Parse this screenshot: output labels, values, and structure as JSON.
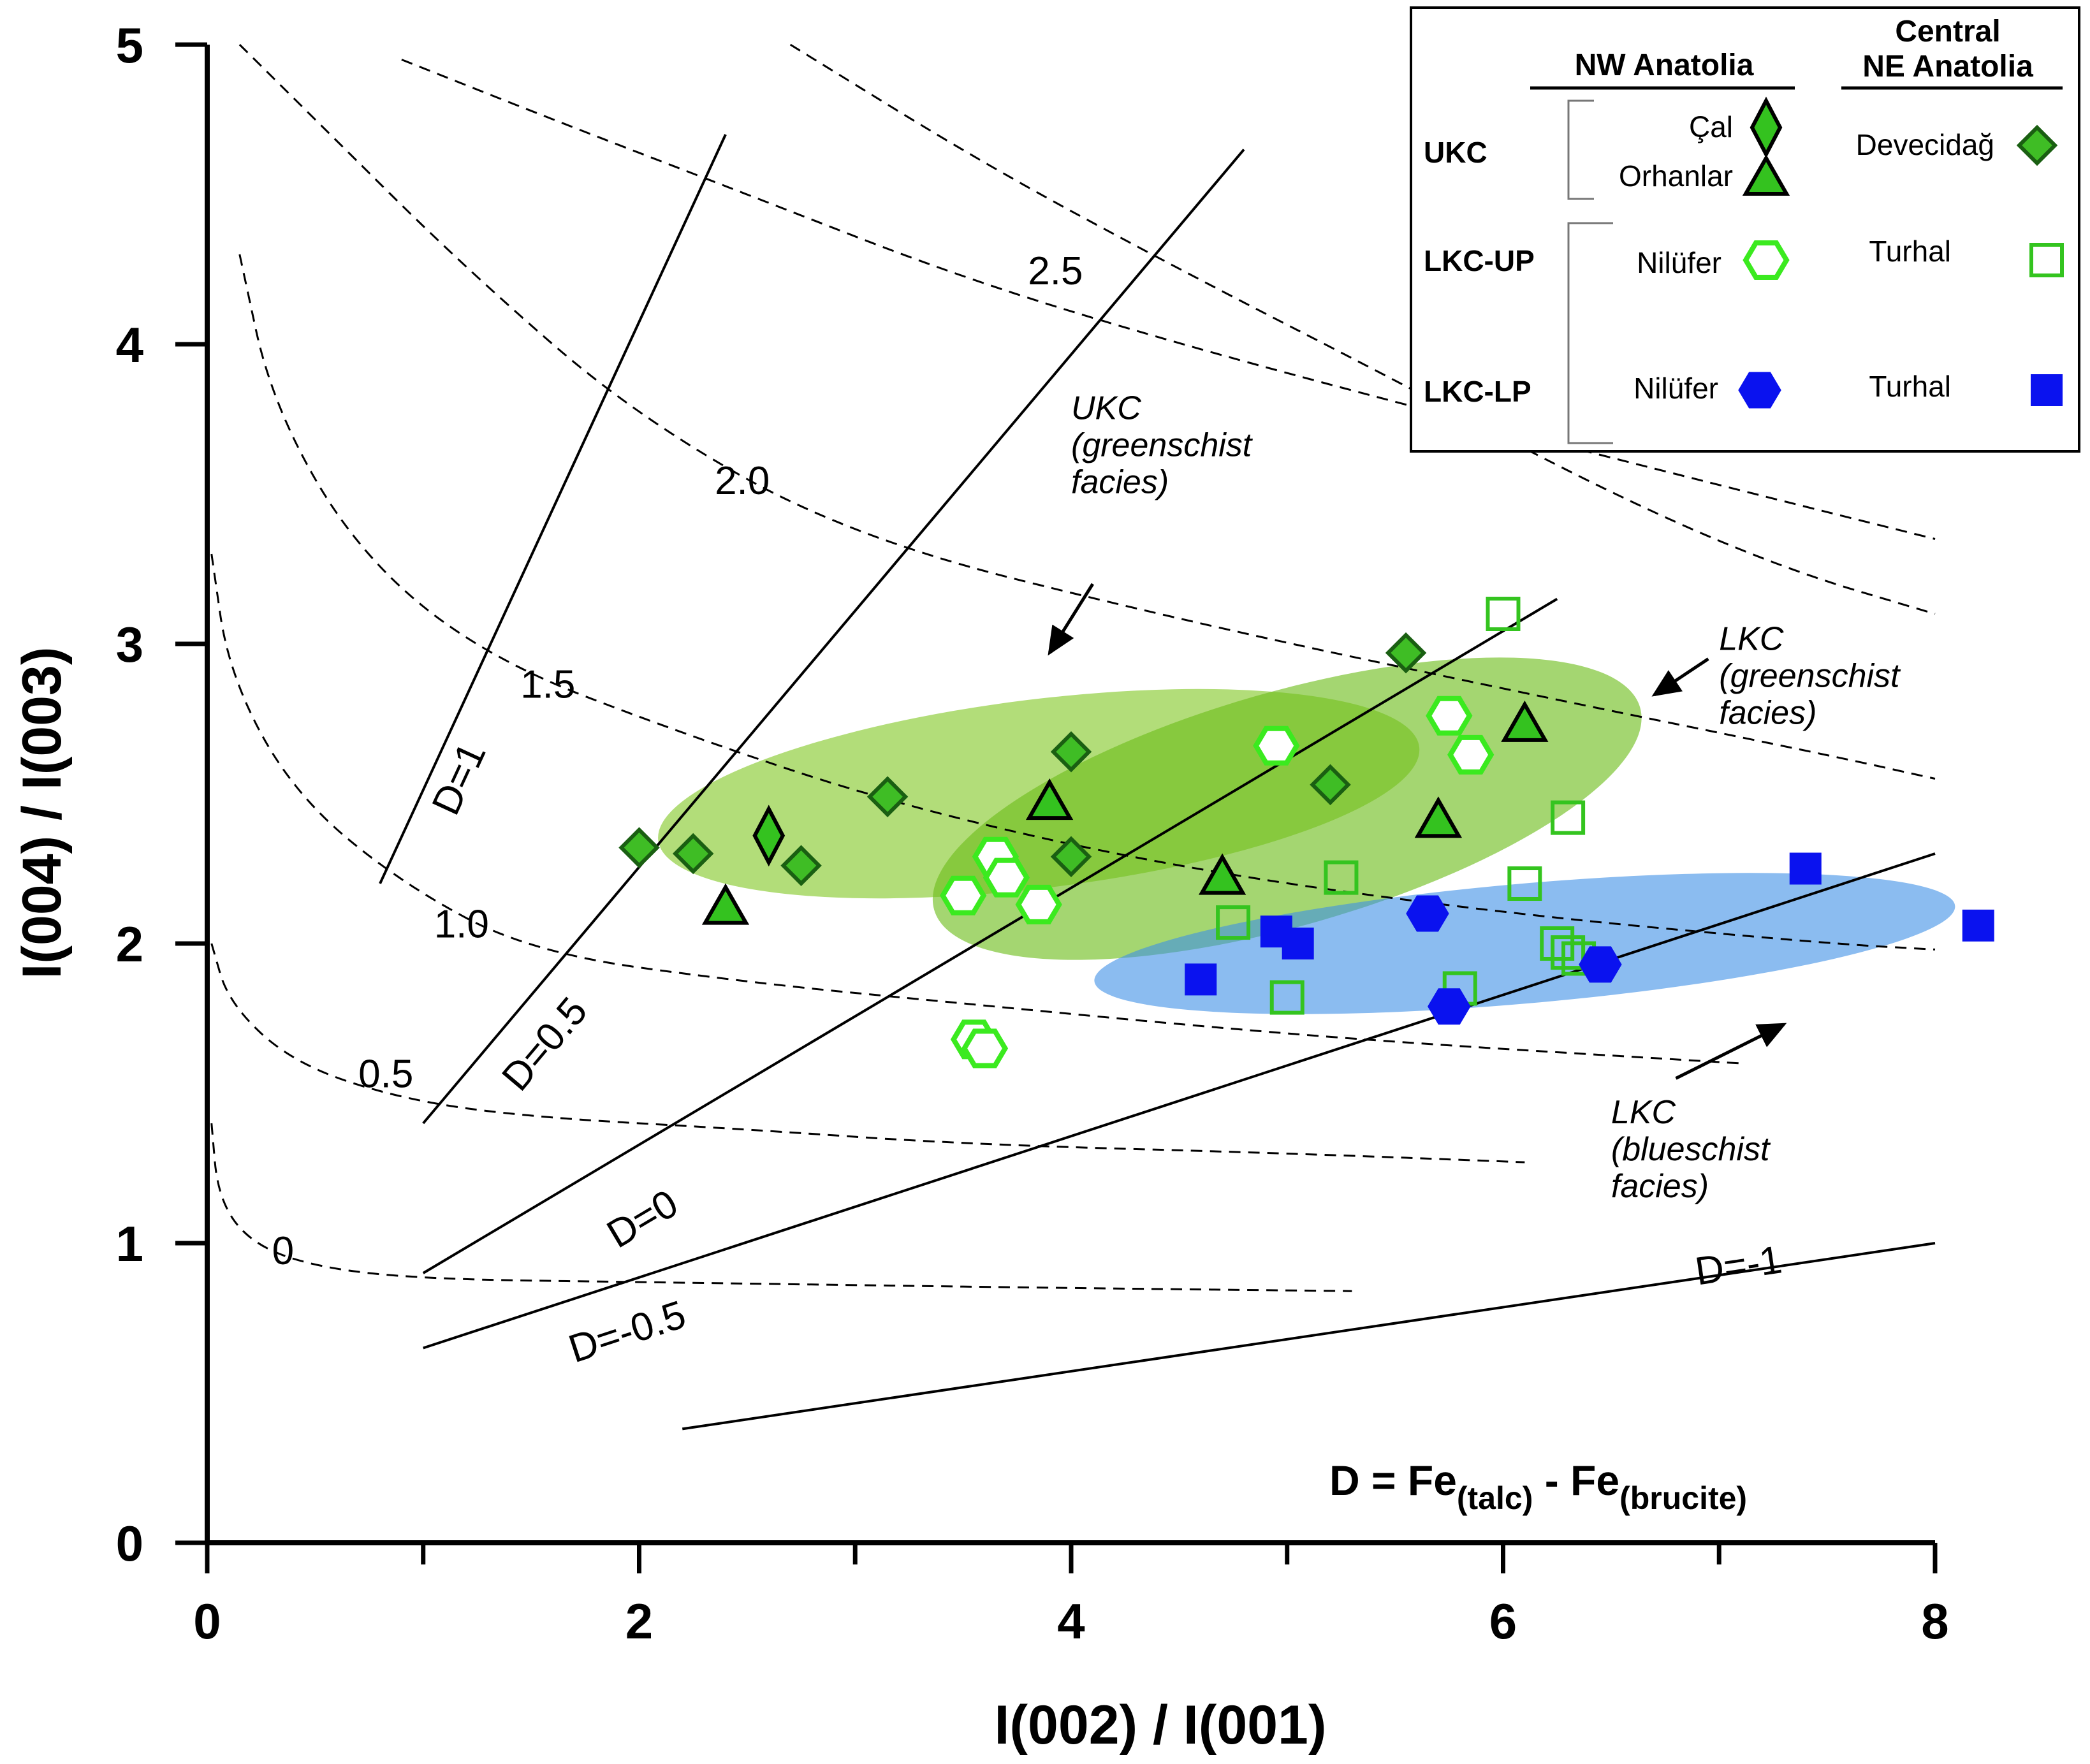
{
  "chart_data": {
    "type": "scatter",
    "x_axis": {
      "label": "I(002) / I(001)",
      "range": [
        0,
        8
      ],
      "ticks": [
        "0",
        "2",
        "4",
        "6",
        "8"
      ]
    },
    "y_axis": {
      "label": "I(004) / I(003)",
      "range": [
        0,
        5
      ],
      "ticks": [
        "0",
        "1",
        "2",
        "3",
        "4",
        "5"
      ]
    },
    "formula": {
      "main": "D = Fe",
      "sub1": "(talc)",
      "mid": " - Fe",
      "sub2": "(brucite)"
    },
    "d_lines": [
      {
        "label": "D=1",
        "from": [
          0.8,
          2.2
        ],
        "to": [
          2.4,
          4.7
        ]
      },
      {
        "label": "D=0.5",
        "from": [
          1.0,
          1.4
        ],
        "to": [
          4.8,
          4.65
        ]
      },
      {
        "label": "D=0",
        "from": [
          1.0,
          0.9
        ],
        "to": [
          6.25,
          3.15
        ]
      },
      {
        "label": "D=-0.5",
        "from": [
          1.0,
          0.65
        ],
        "to": [
          8.0,
          2.3
        ]
      },
      {
        "label": "D=-1",
        "from": [
          2.2,
          0.38
        ],
        "to": [
          8.0,
          1.0
        ]
      }
    ],
    "d_line_labels": [
      {
        "text": "D=1",
        "at": [
          1.15,
          2.42
        ]
      },
      {
        "text": "D=0.5",
        "at": [
          1.45,
          1.5
        ]
      },
      {
        "text": "D=0",
        "at": [
          1.9,
          0.98
        ]
      },
      {
        "text": "D=-0.5",
        "at": [
          1.7,
          0.6
        ]
      },
      {
        "text": "D=-1",
        "at": [
          6.9,
          0.86
        ]
      }
    ],
    "contours": [
      {
        "label": "0",
        "at": [
          0.3,
          0.93
        ],
        "points": [
          [
            0.02,
            1.4
          ],
          [
            0.05,
            1.15
          ],
          [
            0.2,
            1.0
          ],
          [
            0.5,
            0.92
          ],
          [
            1.0,
            0.88
          ],
          [
            2.0,
            0.87
          ],
          [
            3.0,
            0.86
          ],
          [
            4.0,
            0.85
          ],
          [
            5.3,
            0.84
          ]
        ]
      },
      {
        "label": "0.5",
        "at": [
          0.7,
          1.52
        ],
        "points": [
          [
            0.02,
            2.0
          ],
          [
            0.1,
            1.8
          ],
          [
            0.4,
            1.6
          ],
          [
            0.9,
            1.48
          ],
          [
            1.5,
            1.42
          ],
          [
            2.5,
            1.38
          ],
          [
            3.5,
            1.33
          ],
          [
            5.0,
            1.3
          ],
          [
            6.1,
            1.27
          ]
        ]
      },
      {
        "label": "1.0",
        "at": [
          1.05,
          2.02
        ],
        "points": [
          [
            0.02,
            3.3
          ],
          [
            0.1,
            2.9
          ],
          [
            0.4,
            2.5
          ],
          [
            0.9,
            2.2
          ],
          [
            1.5,
            1.97
          ],
          [
            2.5,
            1.87
          ],
          [
            3.5,
            1.8
          ],
          [
            4.5,
            1.73
          ],
          [
            5.5,
            1.67
          ],
          [
            7.1,
            1.6
          ]
        ]
      },
      {
        "label": "1.5",
        "at": [
          1.45,
          2.82
        ],
        "points": [
          [
            0.15,
            4.3
          ],
          [
            0.3,
            3.8
          ],
          [
            0.7,
            3.3
          ],
          [
            1.3,
            2.95
          ],
          [
            2.2,
            2.7
          ],
          [
            3.2,
            2.46
          ],
          [
            4.5,
            2.25
          ],
          [
            6.0,
            2.1
          ],
          [
            7.5,
            2.0
          ],
          [
            8.0,
            1.98
          ]
        ]
      },
      {
        "label": "2.0",
        "at": [
          2.35,
          3.5
        ],
        "points": [
          [
            0.15,
            5.0
          ],
          [
            0.5,
            4.75
          ],
          [
            1.2,
            4.25
          ],
          [
            2.0,
            3.75
          ],
          [
            3.0,
            3.35
          ],
          [
            4.5,
            3.08
          ],
          [
            6.0,
            2.85
          ],
          [
            7.5,
            2.63
          ],
          [
            8.0,
            2.55
          ]
        ]
      },
      {
        "label": "2.5",
        "at": [
          3.8,
          4.2
        ],
        "points": [
          [
            0.9,
            4.95
          ],
          [
            1.6,
            4.75
          ],
          [
            2.5,
            4.5
          ],
          [
            3.5,
            4.22
          ],
          [
            4.5,
            4.0
          ],
          [
            5.8,
            3.75
          ],
          [
            7.0,
            3.53
          ],
          [
            8.0,
            3.35
          ]
        ]
      },
      {
        "label": "",
        "at": [
          0,
          0
        ],
        "points": [
          [
            2.7,
            5.0
          ],
          [
            3.6,
            4.6
          ],
          [
            4.5,
            4.25
          ],
          [
            5.5,
            3.88
          ],
          [
            6.5,
            3.5
          ],
          [
            7.3,
            3.25
          ],
          [
            8.0,
            3.1
          ]
        ]
      }
    ],
    "regions": [
      {
        "name": "UKC (greenschist facies)",
        "cx": 3.85,
        "cy": 2.5,
        "rx": 3.55,
        "ry": 0.63,
        "angle_deg": -7,
        "color": "#8dcd3a",
        "opacity": 0.68
      },
      {
        "name": "LKC (greenschist facies)",
        "cx": 5.0,
        "cy": 2.45,
        "rx": 3.4,
        "ry": 0.78,
        "angle_deg": -16,
        "color": "#6cbd1a",
        "opacity": 0.62
      },
      {
        "name": "LKC (blueschist facies)",
        "cx": 6.1,
        "cy": 2.0,
        "rx": 4.0,
        "ry": 0.4,
        "angle_deg": -5,
        "color": "#3d8fe6",
        "opacity": 0.6
      }
    ],
    "annotations": [
      {
        "lines": [
          "UKC",
          "(greenschist",
          "facies)"
        ],
        "at": [
          4.0,
          3.75
        ],
        "arrow_from": [
          4.1,
          3.2
        ],
        "arrow_to": [
          3.9,
          2.97
        ]
      },
      {
        "lines": [
          "LKC",
          "(greenschist",
          "facies)"
        ],
        "at": [
          7.0,
          2.98
        ],
        "arrow_from": [
          6.95,
          2.95
        ],
        "arrow_to": [
          6.7,
          2.83
        ]
      },
      {
        "lines": [
          "LKC",
          "(blueschist",
          "facies)"
        ],
        "at": [
          6.5,
          1.4
        ],
        "arrow_from": [
          6.8,
          1.55
        ],
        "arrow_to": [
          7.3,
          1.73
        ]
      }
    ],
    "series": [
      {
        "name": "Çal",
        "group": "UKC",
        "region": "NW Anatolia",
        "marker": "diamond-tall",
        "fill": "#34c21f",
        "stroke": "#000",
        "points": [
          [
            2.6,
            2.36
          ]
        ]
      },
      {
        "name": "Orhanlar",
        "group": "UKC",
        "region": "NW Anatolia",
        "marker": "triangle",
        "fill": "#34c21f",
        "stroke": "#000",
        "points": [
          [
            2.4,
            2.12
          ],
          [
            3.9,
            2.47
          ],
          [
            4.7,
            2.22
          ],
          [
            5.7,
            2.41
          ],
          [
            6.1,
            2.73
          ]
        ]
      },
      {
        "name": "Devecidağ",
        "group": "UKC",
        "region": "Central NE Anatolia",
        "marker": "diamond",
        "fill": "#3fbd25",
        "stroke": "#1a5f12",
        "points": [
          [
            2.0,
            2.32
          ],
          [
            2.25,
            2.3
          ],
          [
            2.75,
            2.26
          ],
          [
            3.15,
            2.49
          ],
          [
            4.0,
            2.64
          ],
          [
            4.0,
            2.29
          ],
          [
            5.2,
            2.53
          ],
          [
            5.55,
            2.97
          ]
        ]
      },
      {
        "name": "Nilüfer",
        "group": "LKC-UP",
        "region": "NW Anatolia",
        "marker": "hexagon-open",
        "fill": "#ffffff",
        "stroke": "#3bea1f",
        "points": [
          [
            3.5,
            2.16
          ],
          [
            3.65,
            2.29
          ],
          [
            3.7,
            2.22
          ],
          [
            3.85,
            2.13
          ],
          [
            3.55,
            1.68
          ],
          [
            3.6,
            1.65
          ],
          [
            4.95,
            2.66
          ],
          [
            5.75,
            2.76
          ],
          [
            5.85,
            2.63
          ]
        ]
      },
      {
        "name": "Turhal",
        "group": "LKC-UP",
        "region": "Central NE Anatolia",
        "marker": "square-open",
        "fill": "none",
        "stroke": "#34c41f",
        "points": [
          [
            4.75,
            2.07
          ],
          [
            5.0,
            1.82
          ],
          [
            5.25,
            2.22
          ],
          [
            5.8,
            1.85
          ],
          [
            6.0,
            3.1
          ],
          [
            6.1,
            2.2
          ],
          [
            6.25,
            2.0
          ],
          [
            6.3,
            1.97
          ],
          [
            6.35,
            1.95
          ],
          [
            6.3,
            2.42
          ]
        ]
      },
      {
        "name": "Nilüfer",
        "group": "LKC-LP",
        "region": "NW Anatolia",
        "marker": "hexagon",
        "fill": "#0a12ef",
        "stroke": "#0a12ef",
        "points": [
          [
            5.65,
            2.1
          ],
          [
            5.75,
            1.79
          ],
          [
            6.45,
            1.93
          ]
        ]
      },
      {
        "name": "Turhal",
        "group": "LKC-LP",
        "region": "Central NE Anatolia",
        "marker": "square",
        "fill": "#0a12ef",
        "stroke": "#0a12ef",
        "points": [
          [
            4.6,
            1.88
          ],
          [
            4.95,
            2.04
          ],
          [
            5.05,
            2.0
          ],
          [
            7.4,
            2.25
          ],
          [
            8.2,
            2.06
          ]
        ]
      }
    ],
    "legend": {
      "col1_title": "NW Anatolia",
      "col2_title_line1": "Central",
      "col2_title_line2": "NE Anatolia",
      "rows": [
        {
          "group": "UKC",
          "nw": [
            "Çal",
            "Orhanlar"
          ],
          "ne": "Devecidağ"
        },
        {
          "group": "LKC-UP",
          "nw": [
            "Nilüfer"
          ],
          "ne": "Turhal"
        },
        {
          "group": "LKC-LP",
          "nw": [
            "Nilüfer"
          ],
          "ne": "Turhal"
        }
      ]
    }
  }
}
